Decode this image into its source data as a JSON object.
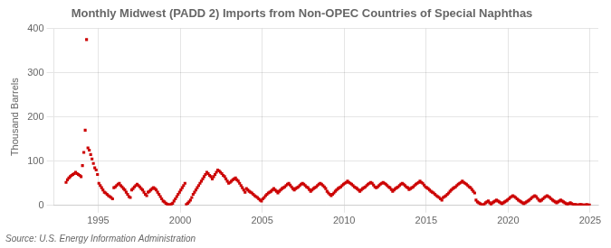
{
  "chart_data": {
    "type": "scatter",
    "title": "Monthly Midwest (PADD 2) Imports from Non-OPEC Countries of Special Naphthas",
    "ylabel": "Thousand Barrels",
    "source": "Source: U.S. Energy Information Administration",
    "color": "#cc0000",
    "marker": "square",
    "grid": true,
    "xlim": [
      1992.3,
      2025.5
    ],
    "ylim": [
      0,
      400
    ],
    "xticks": [
      1995,
      2000,
      2005,
      2010,
      2015,
      2020,
      2025
    ],
    "yticks": [
      0,
      100,
      200,
      300,
      400
    ],
    "x": [
      1993.0416666666667,
      1993.125,
      1993.2083333333333,
      1993.2916666666667,
      1993.375,
      1993.4583333333333,
      1993.5416666666667,
      1993.625,
      1993.7083333333333,
      1993.7916666666667,
      1993.875,
      1993.9583333333333,
      1994.0416666666667,
      1994.125,
      1994.2083333333333,
      1994.2916666666667,
      1994.375,
      1994.4583333333333,
      1994.5416666666667,
      1994.625,
      1994.7083333333333,
      1994.7916666666667,
      1994.875,
      1994.9583333333333,
      1995.0416666666667,
      1995.125,
      1995.2083333333333,
      1995.2916666666667,
      1995.375,
      1995.4583333333333,
      1995.5416666666667,
      1995.625,
      1995.7083333333333,
      1995.7916666666667,
      1995.875,
      1995.9583333333333,
      1996.0416666666667,
      1996.125,
      1996.2083333333333,
      1996.2916666666667,
      1996.375,
      1996.4583333333333,
      1996.5416666666667,
      1996.625,
      1996.7083333333333,
      1996.7916666666667,
      1996.875,
      1996.9583333333333,
      1997.0416666666667,
      1997.125,
      1997.2083333333333,
      1997.2916666666667,
      1997.375,
      1997.4583333333333,
      1997.5416666666667,
      1997.625,
      1997.7083333333333,
      1997.7916666666667,
      1997.875,
      1997.9583333333333,
      1998.0416666666667,
      1998.125,
      1998.2083333333333,
      1998.2916666666667,
      1998.375,
      1998.4583333333333,
      1998.5416666666667,
      1998.625,
      1998.7083333333333,
      1998.7916666666667,
      1998.875,
      1998.9583333333333,
      1999.0416666666667,
      1999.125,
      1999.2083333333333,
      1999.2916666666667,
      1999.375,
      1999.4583333333333,
      1999.5416666666667,
      1999.625,
      1999.7083333333333,
      1999.7916666666667,
      1999.875,
      1999.9583333333333,
      2000.0416666666667,
      2000.125,
      2000.2083333333333,
      2000.2916666666667,
      2000.375,
      2000.4583333333333,
      2000.5416666666667,
      2000.625,
      2000.7083333333333,
      2000.7916666666667,
      2000.875,
      2000.9583333333333,
      2001.0416666666667,
      2001.125,
      2001.2083333333333,
      2001.2916666666667,
      2001.375,
      2001.4583333333333,
      2001.5416666666667,
      2001.625,
      2001.7083333333333,
      2001.7916666666667,
      2001.875,
      2001.9583333333333,
      2002.0416666666667,
      2002.125,
      2002.2083333333333,
      2002.2916666666667,
      2002.375,
      2002.4583333333333,
      2002.5416666666667,
      2002.625,
      2002.7083333333333,
      2002.7916666666667,
      2002.875,
      2002.9583333333333,
      2003.0416666666667,
      2003.125,
      2003.2083333333333,
      2003.2916666666667,
      2003.375,
      2003.4583333333333,
      2003.5416666666667,
      2003.625,
      2003.7083333333333,
      2003.7916666666667,
      2003.875,
      2003.9583333333333,
      2004.0416666666667,
      2004.125,
      2004.2083333333333,
      2004.2916666666667,
      2004.375,
      2004.4583333333333,
      2004.5416666666667,
      2004.625,
      2004.7083333333333,
      2004.7916666666667,
      2004.875,
      2004.9583333333333,
      2005.0416666666667,
      2005.125,
      2005.2083333333333,
      2005.2916666666667,
      2005.375,
      2005.4583333333333,
      2005.5416666666667,
      2005.625,
      2005.7083333333333,
      2005.7916666666667,
      2005.875,
      2005.9583333333333,
      2006.0416666666667,
      2006.125,
      2006.2083333333333,
      2006.2916666666667,
      2006.375,
      2006.4583333333333,
      2006.5416666666667,
      2006.625,
      2006.7083333333333,
      2006.7916666666667,
      2006.875,
      2006.9583333333333,
      2007.0416666666667,
      2007.125,
      2007.2083333333333,
      2007.2916666666667,
      2007.375,
      2007.4583333333333,
      2007.5416666666667,
      2007.625,
      2007.7083333333333,
      2007.7916666666667,
      2007.875,
      2007.9583333333333,
      2008.0416666666667,
      2008.125,
      2008.2083333333333,
      2008.2916666666667,
      2008.375,
      2008.4583333333333,
      2008.5416666666667,
      2008.625,
      2008.7083333333333,
      2008.7916666666667,
      2008.875,
      2008.9583333333333,
      2009.0416666666667,
      2009.125,
      2009.2083333333333,
      2009.2916666666667,
      2009.375,
      2009.4583333333333,
      2009.5416666666667,
      2009.625,
      2009.7083333333333,
      2009.7916666666667,
      2009.875,
      2009.9583333333333,
      2010.0416666666667,
      2010.125,
      2010.2083333333333,
      2010.2916666666667,
      2010.375,
      2010.4583333333333,
      2010.5416666666667,
      2010.625,
      2010.7083333333333,
      2010.7916666666667,
      2010.875,
      2010.9583333333333,
      2011.0416666666667,
      2011.125,
      2011.2083333333333,
      2011.2916666666667,
      2011.375,
      2011.4583333333333,
      2011.5416666666667,
      2011.625,
      2011.7083333333333,
      2011.7916666666667,
      2011.875,
      2011.9583333333333,
      2012.0416666666667,
      2012.125,
      2012.2083333333333,
      2012.2916666666667,
      2012.375,
      2012.4583333333333,
      2012.5416666666667,
      2012.625,
      2012.7083333333333,
      2012.7916666666667,
      2012.875,
      2012.9583333333333,
      2013.0416666666667,
      2013.125,
      2013.2083333333333,
      2013.2916666666667,
      2013.375,
      2013.4583333333333,
      2013.5416666666667,
      2013.625,
      2013.7083333333333,
      2013.7916666666667,
      2013.875,
      2013.9583333333333,
      2014.0416666666667,
      2014.125,
      2014.2083333333333,
      2014.2916666666667,
      2014.375,
      2014.4583333333333,
      2014.5416666666667,
      2014.625,
      2014.7083333333333,
      2014.7916666666667,
      2014.875,
      2014.9583333333333,
      2015.0416666666667,
      2015.125,
      2015.2083333333333,
      2015.2916666666667,
      2015.375,
      2015.4583333333333,
      2015.5416666666667,
      2015.625,
      2015.7083333333333,
      2015.7916666666667,
      2015.875,
      2015.9583333333333,
      2016.0416666666667,
      2016.125,
      2016.2083333333333,
      2016.2916666666667,
      2016.375,
      2016.4583333333333,
      2016.5416666666667,
      2016.625,
      2016.7083333333333,
      2016.7916666666667,
      2016.875,
      2016.9583333333333,
      2017.0416666666667,
      2017.125,
      2017.2083333333333,
      2017.2916666666667,
      2017.375,
      2017.4583333333333,
      2017.5416666666667,
      2017.625,
      2017.7083333333333,
      2017.7916666666667,
      2017.875,
      2017.9583333333333,
      2018.0416666666667,
      2018.125,
      2018.2083333333333,
      2018.2916666666667,
      2018.375,
      2018.4583333333333,
      2018.5416666666667,
      2018.625,
      2018.7083333333333,
      2018.7916666666667,
      2018.875,
      2018.9583333333333,
      2019.0416666666667,
      2019.125,
      2019.2083333333333,
      2019.2916666666667,
      2019.375,
      2019.4583333333333,
      2019.5416666666667,
      2019.625,
      2019.7083333333333,
      2019.7916666666667,
      2019.875,
      2019.9583333333333,
      2020.0416666666667,
      2020.125,
      2020.2083333333333,
      2020.2916666666667,
      2020.375,
      2020.4583333333333,
      2020.5416666666667,
      2020.625,
      2020.7083333333333,
      2020.7916666666667,
      2020.875,
      2020.9583333333333,
      2021.0416666666667,
      2021.125,
      2021.2083333333333,
      2021.2916666666667,
      2021.375,
      2021.4583333333333,
      2021.5416666666667,
      2021.625,
      2021.7083333333333,
      2021.7916666666667,
      2021.875,
      2021.9583333333333,
      2022.0416666666667,
      2022.125,
      2022.2083333333333,
      2022.2916666666667,
      2022.375,
      2022.4583333333333,
      2022.5416666666667,
      2022.625,
      2022.7083333333333,
      2022.7916666666667,
      2022.875,
      2022.9583333333333,
      2023.0416666666667,
      2023.125,
      2023.2083333333333,
      2023.2916666666667,
      2023.375,
      2023.4583333333333,
      2023.5416666666667,
      2023.625,
      2023.7083333333333,
      2023.7916666666667,
      2023.875,
      2023.9583333333333,
      2024.0416666666667,
      2024.125,
      2024.2083333333333,
      2024.2916666666667,
      2024.375,
      2024.4583333333333,
      2024.5416666666667,
      2024.625,
      2024.7083333333333,
      2024.7916666666667,
      2024.875,
      2024.9583333333333
    ],
    "values": [
      52,
      58,
      62,
      65,
      68,
      70,
      72,
      75,
      72,
      70,
      68,
      65,
      90,
      120,
      170,
      375,
      130,
      125,
      115,
      105,
      95,
      85,
      80,
      70,
      50,
      45,
      40,
      35,
      30,
      28,
      25,
      22,
      20,
      18,
      15,
      40,
      42,
      45,
      48,
      50,
      45,
      42,
      38,
      35,
      30,
      25,
      20,
      18,
      35,
      38,
      42,
      45,
      48,
      45,
      42,
      38,
      35,
      30,
      25,
      22,
      30,
      32,
      35,
      38,
      40,
      38,
      35,
      30,
      25,
      20,
      15,
      10,
      8,
      5,
      3,
      2,
      1,
      3,
      5,
      10,
      15,
      20,
      25,
      30,
      35,
      40,
      45,
      50,
      2,
      5,
      8,
      12,
      18,
      25,
      30,
      35,
      40,
      45,
      50,
      55,
      60,
      65,
      70,
      75,
      72,
      68,
      65,
      60,
      65,
      70,
      75,
      80,
      78,
      75,
      72,
      68,
      65,
      60,
      55,
      50,
      52,
      55,
      58,
      60,
      62,
      58,
      55,
      50,
      45,
      40,
      35,
      30,
      38,
      35,
      32,
      30,
      28,
      25,
      22,
      20,
      18,
      15,
      12,
      10,
      15,
      18,
      22,
      25,
      28,
      30,
      32,
      35,
      38,
      35,
      32,
      28,
      32,
      35,
      38,
      40,
      42,
      45,
      48,
      50,
      46,
      42,
      38,
      35,
      38,
      40,
      42,
      45,
      48,
      50,
      48,
      45,
      42,
      40,
      36,
      32,
      35,
      38,
      40,
      42,
      45,
      48,
      50,
      48,
      45,
      42,
      38,
      32,
      28,
      25,
      22,
      25,
      28,
      32,
      35,
      38,
      40,
      42,
      45,
      48,
      50,
      52,
      55,
      52,
      50,
      48,
      45,
      42,
      40,
      38,
      35,
      32,
      35,
      38,
      40,
      42,
      45,
      48,
      50,
      52,
      50,
      46,
      42,
      40,
      42,
      45,
      48,
      50,
      52,
      50,
      48,
      45,
      42,
      40,
      36,
      32,
      35,
      38,
      40,
      42,
      45,
      48,
      50,
      48,
      45,
      42,
      40,
      36,
      38,
      40,
      42,
      45,
      48,
      50,
      52,
      55,
      52,
      50,
      46,
      42,
      40,
      38,
      35,
      32,
      30,
      28,
      25,
      22,
      20,
      18,
      15,
      12,
      18,
      20,
      22,
      25,
      28,
      32,
      35,
      38,
      40,
      42,
      45,
      48,
      50,
      52,
      55,
      52,
      50,
      48,
      45,
      42,
      40,
      36,
      32,
      28,
      12,
      8,
      6,
      4,
      2,
      1,
      3,
      6,
      8,
      10,
      6,
      3,
      6,
      8,
      10,
      12,
      10,
      8,
      6,
      4,
      6,
      8,
      10,
      12,
      15,
      18,
      20,
      22,
      20,
      18,
      15,
      12,
      10,
      8,
      6,
      4,
      6,
      8,
      10,
      12,
      15,
      18,
      20,
      22,
      20,
      16,
      12,
      10,
      12,
      15,
      18,
      20,
      22,
      20,
      18,
      15,
      12,
      10,
      8,
      6,
      8,
      10,
      12,
      10,
      8,
      6,
      4,
      2,
      4,
      6,
      4,
      2,
      2,
      2,
      1,
      1,
      2,
      2,
      1,
      1,
      1,
      2,
      1,
      1
    ]
  }
}
